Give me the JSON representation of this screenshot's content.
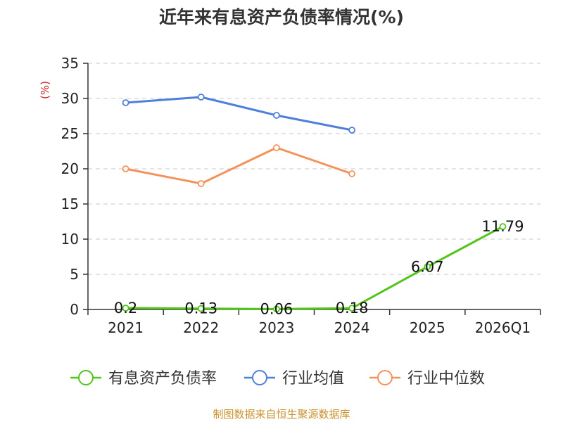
{
  "chart_data": {
    "type": "line",
    "title": "近年来有息资产负债率情况(%)",
    "ylabel": "(%)",
    "xlabel": "",
    "categories": [
      "2021",
      "2022",
      "2023",
      "2024",
      "2025",
      "2026Q1"
    ],
    "ylim": [
      0,
      35
    ],
    "yticks": [
      0,
      5,
      10,
      15,
      20,
      25,
      30,
      35
    ],
    "grid": "horizontal-dashed",
    "legend_position": "bottom",
    "series": [
      {
        "name": "有息资产负债率",
        "color": "#52c41a",
        "values": [
          0.2,
          0.13,
          0.06,
          0.18,
          6.07,
          11.79
        ],
        "labels": [
          "0.2",
          "0.13",
          "0.06",
          "0.18",
          "6.07",
          "11.79"
        ]
      },
      {
        "name": "行业均值",
        "color": "#4e7fdc",
        "values": [
          29.4,
          30.2,
          27.6,
          25.5,
          null,
          null
        ]
      },
      {
        "name": "行业中位数",
        "color": "#f4925c",
        "values": [
          20.0,
          17.9,
          23.0,
          19.3,
          null,
          null
        ]
      }
    ]
  },
  "source": {
    "text": "制图数据来自恒生聚源数据库",
    "color": "#c8922f"
  },
  "ylabel_color": "#cc2222"
}
